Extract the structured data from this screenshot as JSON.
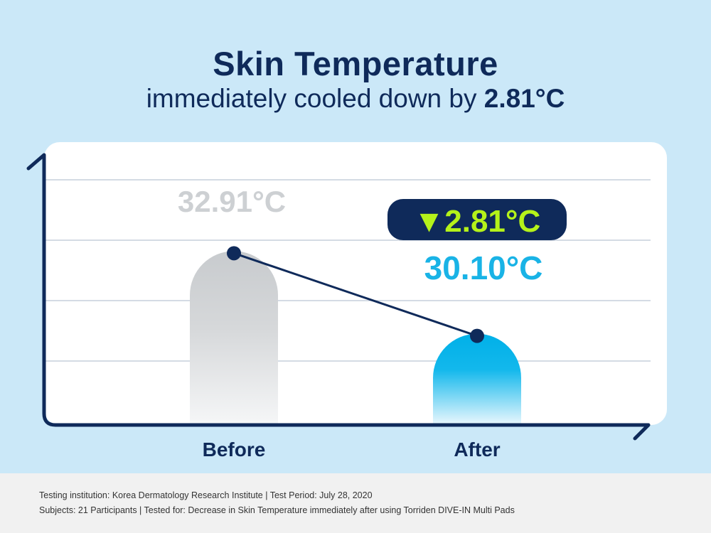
{
  "title": "Skin Temperature",
  "subtitle_prefix": "immediately cooled down by",
  "subtitle_value": "2.81°C",
  "chart_data": {
    "type": "bar",
    "categories": [
      "Before",
      "After"
    ],
    "values": [
      32.91,
      30.1
    ],
    "value_labels": [
      "32.91°C",
      "30.10°C"
    ],
    "difference_label": "▼2.81°C",
    "bar_colors": [
      "#c9cccf",
      "#00b4e6"
    ],
    "connector_line": true,
    "grid": true
  },
  "colors": {
    "background": "#cbe8f8",
    "navy": "#0f2a5a",
    "before_label": "#cdd0d3",
    "after_label": "#19b3e6",
    "badge_bg": "#0f2a5a",
    "badge_text": "#b5f21a"
  },
  "footer": {
    "line1": "Testing institution: Korea Dermatology Research Institute | Test Period: July 28, 2020",
    "line2": "Subjects: 21 Participants | Tested for: Decrease in Skin Temperature immediately after using Torriden DIVE-IN Multi Pads"
  }
}
